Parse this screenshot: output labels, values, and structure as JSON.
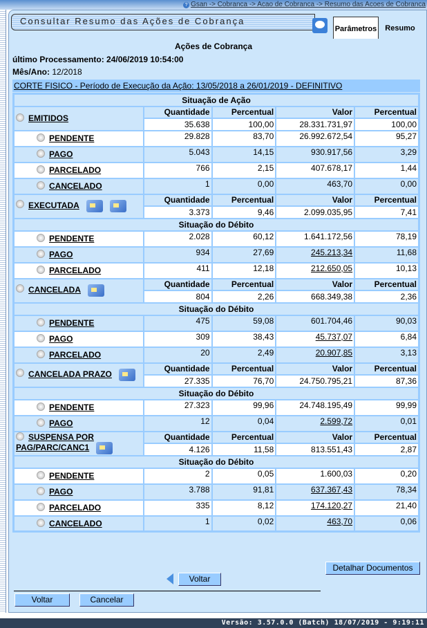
{
  "breadcrumb": "Gsan -> Cobranca -> Acao de Cobranca -> Resumo das Acoes de Cobranca",
  "title": "Consultar Resumo das Ações de Cobrança",
  "tabs": [
    "Parâmetros",
    "Resumo"
  ],
  "heading": "Ações de Cobrança",
  "ultimo_processamento": "último Processamento: 24/06/2019 10:54:00",
  "mes_ano_label": "Mês/Ano:",
  "mes_ano_value": "12/2018",
  "acao_header": "CORTE FISICO - Período de Execução da Ação: 13/05/2018 a 26/01/2019 - DEFINITIVO",
  "situacao_acao_label": "Situação de Ação",
  "situacao_debito_label": "Situação do Débito",
  "columns": [
    "Quantidade",
    "Percentual",
    "Valor",
    "Percentual"
  ],
  "sections": [
    {
      "name": "EMITIDOS",
      "folders": 0,
      "summary": [
        "35.638",
        "100,00",
        "28.331.731,97",
        "100,00"
      ],
      "has_debito_header": false,
      "items": [
        {
          "label": "PENDENTE",
          "values": [
            "29.828",
            "83,70",
            "26.992.672,54",
            "95,27"
          ],
          "valor_link": false
        },
        {
          "label": "PAGO",
          "values": [
            "5.043",
            "14,15",
            "930.917,56",
            "3,29"
          ],
          "valor_link": false
        },
        {
          "label": "PARCELADO",
          "values": [
            "766",
            "2,15",
            "407.678,17",
            "1,44"
          ],
          "valor_link": false
        },
        {
          "label": "CANCELADO",
          "values": [
            "1",
            "0,00",
            "463,70",
            "0,00"
          ],
          "valor_link": false
        }
      ]
    },
    {
      "name": "EXECUTADA",
      "folders": 2,
      "summary": [
        "3.373",
        "9,46",
        "2.099.035,95",
        "7,41"
      ],
      "has_debito_header": true,
      "items": [
        {
          "label": "PENDENTE",
          "values": [
            "2.028",
            "60,12",
            "1.641.172,56",
            "78,19"
          ],
          "valor_link": false
        },
        {
          "label": "PAGO",
          "values": [
            "934",
            "27,69",
            "245.213,34",
            "11,68"
          ],
          "valor_link": true
        },
        {
          "label": "PARCELADO",
          "values": [
            "411",
            "12,18",
            "212.650,05",
            "10,13"
          ],
          "valor_link": true
        }
      ]
    },
    {
      "name": "CANCELADA",
      "folders": 1,
      "summary": [
        "804",
        "2,26",
        "668.349,38",
        "2,36"
      ],
      "has_debito_header": true,
      "items": [
        {
          "label": "PENDENTE",
          "values": [
            "475",
            "59,08",
            "601.704,46",
            "90,03"
          ],
          "valor_link": false
        },
        {
          "label": "PAGO",
          "values": [
            "309",
            "38,43",
            "45.737,07",
            "6,84"
          ],
          "valor_link": true
        },
        {
          "label": "PARCELADO",
          "values": [
            "20",
            "2,49",
            "20.907,85",
            "3,13"
          ],
          "valor_link": true
        }
      ]
    },
    {
      "name": "CANCELADA PRAZO",
      "folders": 1,
      "summary": [
        "27.335",
        "76,70",
        "24.750.795,21",
        "87,36"
      ],
      "has_debito_header": true,
      "items": [
        {
          "label": "PENDENTE",
          "values": [
            "27.323",
            "99,96",
            "24.748.195,49",
            "99,99"
          ],
          "valor_link": false
        },
        {
          "label": "PAGO",
          "values": [
            "12",
            "0,04",
            "2.599,72",
            "0,01"
          ],
          "valor_link": true
        }
      ]
    },
    {
      "name": "SUSPENSA POR PAG/PARC/CANC1",
      "folders": 1,
      "summary": [
        "4.126",
        "11,58",
        "813.551,43",
        "2,87"
      ],
      "has_debito_header": true,
      "items": [
        {
          "label": "PENDENTE",
          "values": [
            "2",
            "0,05",
            "1.600,03",
            "0,20"
          ],
          "valor_link": false
        },
        {
          "label": "PAGO",
          "values": [
            "3.788",
            "91,81",
            "637.367,43",
            "78,34"
          ],
          "valor_link": true
        },
        {
          "label": "PARCELADO",
          "values": [
            "335",
            "8,12",
            "174.120,27",
            "21,40"
          ],
          "valor_link": true
        },
        {
          "label": "CANCELADO",
          "values": [
            "1",
            "0,02",
            "463,70",
            "0,06"
          ],
          "valor_link": true
        }
      ]
    }
  ],
  "buttons": {
    "detalhar": "Detalhar Documentos",
    "voltar_inner": "Voltar",
    "voltar": "Voltar",
    "cancelar": "Cancelar"
  },
  "footer": "Versão: 3.57.0.0 (Batch) 18/07/2019 - 9:19:11"
}
